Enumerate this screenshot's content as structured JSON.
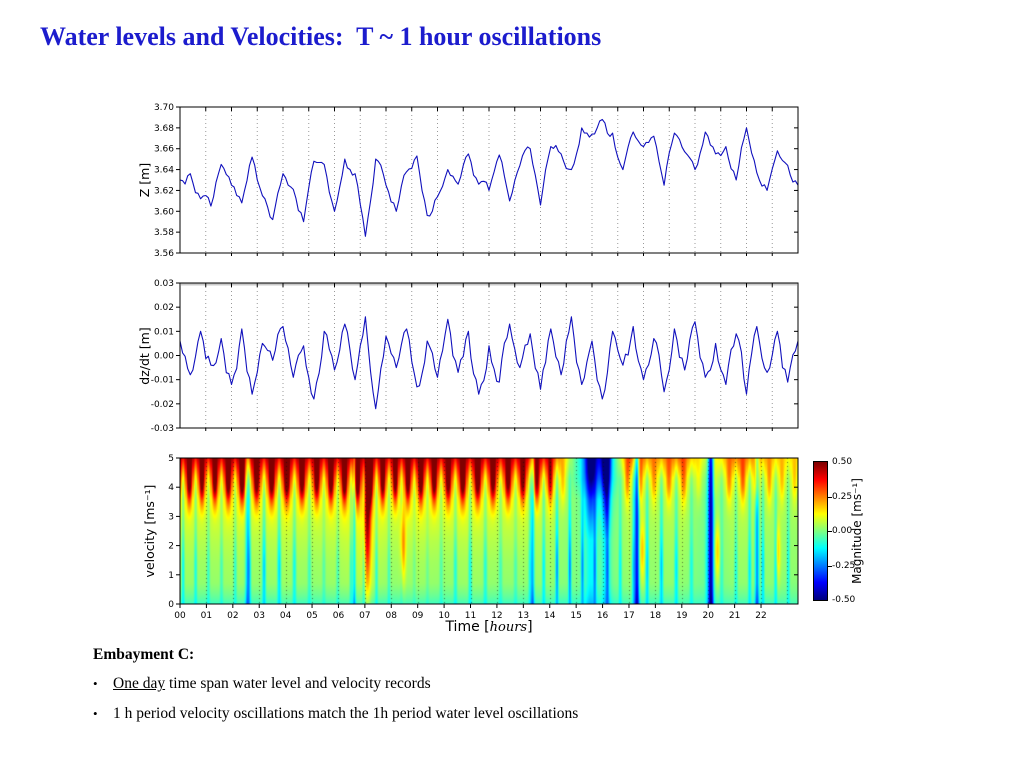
{
  "title": "Water levels and Velocities:  T ~ 1 hour oscillations",
  "title_color": "#1c1ccd",
  "line_color": "#1111bd",
  "notes": {
    "heading": "Embayment C:",
    "bullets": [
      {
        "underline": "One day",
        "rest": " time span water level and velocity records"
      },
      {
        "underline": "",
        "rest": "1 h period velocity oscillations match the 1h period water level oscillations"
      }
    ]
  },
  "chart_data": [
    {
      "type": "line",
      "name": "water-level",
      "ylabel": "Z [m]",
      "ylim": [
        3.56,
        3.7
      ],
      "yticks": [
        3.56,
        3.58,
        3.6,
        3.62,
        3.64,
        3.66,
        3.68,
        3.7
      ],
      "x_hours": [
        0,
        24
      ],
      "x_step_h": 0.4,
      "grid": "hourly-dotted",
      "noise_amp": [
        0.007,
        0.0035
      ],
      "seed": 7,
      "values": [
        3.63,
        3.636,
        3.612,
        3.605,
        3.645,
        3.625,
        3.608,
        3.652,
        3.615,
        3.592,
        3.636,
        3.621,
        3.59,
        3.648,
        3.645,
        3.6,
        3.65,
        3.636,
        3.576,
        3.65,
        3.625,
        3.6,
        3.638,
        3.653,
        3.596,
        3.614,
        3.64,
        3.626,
        3.655,
        3.626,
        3.62,
        3.654,
        3.61,
        3.644,
        3.66,
        3.606,
        3.662,
        3.655,
        3.64,
        3.68,
        3.674,
        3.688,
        3.675,
        3.64,
        3.676,
        3.662,
        3.672,
        3.625,
        3.675,
        3.657,
        3.64,
        3.676,
        3.655,
        3.662,
        3.63,
        3.68,
        3.637,
        3.62,
        3.658,
        3.644,
        3.625
      ]
    },
    {
      "type": "line",
      "name": "dzdt",
      "ylabel": "dz/dt [m]",
      "ylim": [
        -0.03,
        0.03
      ],
      "yticks": [
        -0.03,
        -0.02,
        -0.01,
        0.0,
        0.01,
        0.02,
        0.03
      ],
      "x_hours": [
        0,
        24
      ],
      "x_step_h": 0.4,
      "grid": "hourly-dotted",
      "gray_top": true,
      "noise_amp": [
        0.005,
        0.0025
      ],
      "seed": 13,
      "values": [
        0.006,
        -0.008,
        0.01,
        -0.004,
        0.007,
        -0.012,
        0.011,
        -0.016,
        0.005,
        -0.002,
        0.012,
        -0.009,
        0.004,
        -0.018,
        0.01,
        -0.006,
        0.013,
        -0.01,
        0.016,
        -0.022,
        0.008,
        -0.005,
        0.011,
        -0.013,
        0.006,
        -0.009,
        0.015,
        -0.007,
        0.01,
        -0.016,
        0.004,
        -0.011,
        0.013,
        -0.005,
        0.009,
        -0.014,
        0.011,
        -0.008,
        0.016,
        -0.012,
        0.006,
        -0.018,
        0.01,
        -0.004,
        0.012,
        -0.01,
        0.007,
        -0.015,
        0.011,
        -0.006,
        0.014,
        -0.009,
        0.005,
        -0.012,
        0.009,
        -0.016,
        0.012,
        -0.007,
        0.01,
        -0.011,
        0.006
      ]
    },
    {
      "type": "heatmap",
      "name": "velocity-magnitude",
      "ylabel": "velocity [ms⁻¹]",
      "xlabel_parts": [
        "Time [",
        "hours",
        "]"
      ],
      "ylim": [
        0,
        5
      ],
      "yticks": [
        0,
        1,
        2,
        3,
        4,
        5
      ],
      "xticks": [
        "00",
        "01",
        "02",
        "03",
        "04",
        "05",
        "06",
        "07",
        "08",
        "09",
        "10",
        "11",
        "12",
        "13",
        "14",
        "15",
        "16",
        "17",
        "18",
        "19",
        "20",
        "21",
        "22"
      ],
      "x_range_h": [
        0,
        23.4
      ],
      "colormap": "jet",
      "colorbar": {
        "label": "Magnitude [ms⁻¹]",
        "ticks": [
          0.5,
          0.25,
          0.0,
          -0.25,
          -0.5
        ],
        "vmin": -0.5,
        "vmax": 0.5
      },
      "base_grid_rows_top_to_bottom": [
        [
          0.46,
          0.44,
          0.47,
          0.45,
          0.46,
          0.44,
          0.47,
          0.46,
          0.44,
          0.47,
          0.45,
          0.46,
          0.44,
          0.43,
          0.4,
          -0.05,
          -0.38,
          0.3,
          0.22,
          0.28,
          0.05,
          0.28,
          0.22,
          0.15
        ],
        [
          0.3,
          0.27,
          0.3,
          0.28,
          0.3,
          0.27,
          0.3,
          0.32,
          0.27,
          0.3,
          0.28,
          0.3,
          0.27,
          0.26,
          0.22,
          -0.05,
          -0.25,
          0.14,
          0.1,
          0.13,
          0.0,
          0.14,
          0.11,
          0.08
        ],
        [
          0.15,
          0.13,
          0.15,
          0.14,
          0.15,
          0.13,
          0.15,
          0.18,
          0.13,
          0.15,
          0.14,
          0.15,
          0.13,
          0.12,
          0.1,
          0.0,
          -0.1,
          0.07,
          0.05,
          0.07,
          -0.02,
          0.07,
          0.06,
          0.04
        ],
        [
          0.09,
          0.07,
          0.09,
          0.08,
          0.09,
          0.07,
          0.09,
          0.12,
          0.07,
          0.09,
          0.08,
          0.09,
          0.07,
          0.07,
          0.06,
          0.0,
          -0.05,
          0.05,
          0.04,
          0.05,
          -0.02,
          0.05,
          0.04,
          0.03
        ],
        [
          0.06,
          0.05,
          0.06,
          0.05,
          0.06,
          0.05,
          0.06,
          0.09,
          0.05,
          0.06,
          0.05,
          0.06,
          0.05,
          0.05,
          0.04,
          0.0,
          -0.03,
          0.04,
          0.03,
          0.04,
          -0.02,
          0.04,
          0.03,
          0.02
        ],
        [
          0.04,
          0.03,
          0.04,
          0.03,
          0.04,
          0.03,
          0.04,
          0.07,
          0.03,
          0.04,
          0.03,
          0.04,
          0.03,
          0.03,
          0.03,
          0.0,
          -0.02,
          0.03,
          0.02,
          0.03,
          -0.02,
          0.03,
          0.02,
          0.02
        ],
        [
          0.03,
          0.02,
          0.03,
          0.02,
          0.03,
          0.02,
          0.03,
          0.05,
          0.02,
          0.03,
          0.02,
          0.03,
          0.02,
          0.02,
          0.02,
          0.0,
          -0.02,
          0.02,
          0.02,
          0.02,
          -0.02,
          0.02,
          0.02,
          0.01
        ],
        [
          -0.02,
          -0.03,
          -0.02,
          -0.03,
          -0.02,
          -0.03,
          -0.02,
          -0.01,
          -0.03,
          -0.02,
          -0.03,
          -0.02,
          -0.03,
          -0.03,
          -0.03,
          -0.04,
          -0.05,
          -0.02,
          -0.03,
          -0.02,
          -0.04,
          -0.02,
          -0.03,
          -0.02
        ]
      ],
      "streaks": {
        "period_h": 0.52,
        "base_amp": 0.11,
        "extra_after_h14": 0.05
      },
      "cold_columns": [
        {
          "t": 2.55,
          "w": 0.08,
          "s": 0.2,
          "top": 0
        },
        {
          "t": 6.6,
          "w": 0.06,
          "s": 0.18,
          "top": 0
        },
        {
          "t": 13.35,
          "w": 0.07,
          "s": 0.22,
          "top": 0
        },
        {
          "t": 15.55,
          "w": 0.22,
          "s": 0.38,
          "top": 1
        },
        {
          "t": 16.15,
          "w": 0.15,
          "s": 0.45,
          "top": 1
        },
        {
          "t": 17.3,
          "w": 0.09,
          "s": 0.4,
          "top": 0
        },
        {
          "t": 20.1,
          "w": 0.1,
          "s": 0.45,
          "top": 0
        },
        {
          "t": 21.85,
          "w": 0.08,
          "s": 0.25,
          "top": 0
        }
      ],
      "warm_columns": [
        {
          "t": 7.1,
          "w": 0.13,
          "s": 0.38,
          "yc": 3.0,
          "ys": 2.4
        },
        {
          "t": 8.45,
          "w": 0.1,
          "s": 0.2,
          "yc": 2.0,
          "ys": 1.2
        },
        {
          "t": 17.5,
          "w": 0.1,
          "s": 0.15,
          "yc": 1.8,
          "ys": 1.0
        },
        {
          "t": 20.35,
          "w": 0.1,
          "s": 0.17,
          "yc": 1.8,
          "ys": 1.0
        },
        {
          "t": 22.65,
          "w": 0.09,
          "s": 0.14,
          "yc": 1.8,
          "ys": 1.0
        }
      ]
    }
  ]
}
